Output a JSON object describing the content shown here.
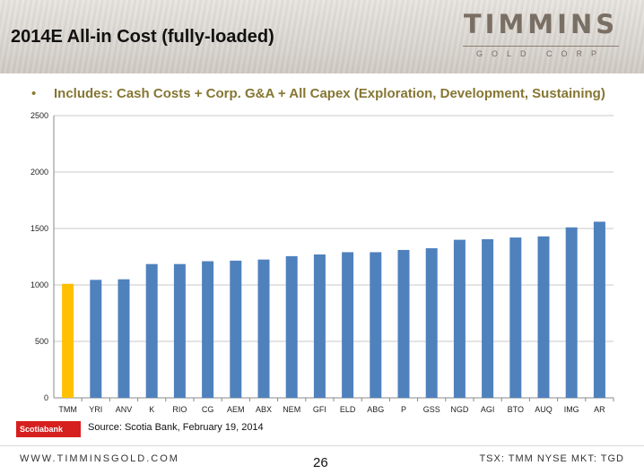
{
  "header": {
    "title": "2014E All-in Cost (fully-loaded)",
    "logo_main": "TIMMINS",
    "logo_sub": "GOLD CORP"
  },
  "bullet": {
    "dot": "•",
    "text": "Includes:  Cash Costs + Corp. G&A + All Capex (Exploration, Development, Sustaining)"
  },
  "chart_data": {
    "type": "bar",
    "categories": [
      "TMM",
      "YRI",
      "ANV",
      "K",
      "RIO",
      "CG",
      "AEM",
      "ABX",
      "NEM",
      "GFI",
      "ELD",
      "ABG",
      "P",
      "GSS",
      "NGD",
      "AGI",
      "BTO",
      "AUQ",
      "IMG",
      "AR"
    ],
    "values": [
      1010,
      1045,
      1050,
      1185,
      1185,
      1210,
      1215,
      1225,
      1255,
      1270,
      1290,
      1290,
      1310,
      1325,
      1400,
      1405,
      1420,
      1430,
      1510,
      1560
    ],
    "highlight_index": 0,
    "ylim": [
      0,
      2500
    ],
    "yticks": [
      0,
      500,
      1000,
      1500,
      2000,
      2500
    ],
    "grid": true,
    "title": "",
    "xlabel": "",
    "ylabel": "",
    "colors": {
      "bar": "#4f81bd",
      "highlight": "#ffc000",
      "grid": "#c8c8c8",
      "axis": "#888888"
    }
  },
  "source": {
    "badge": "Scotiabank",
    "text": "Source:  Scotia Bank, February 19, 2014"
  },
  "footer": {
    "url": "WWW.TIMMINSGOLD.COM",
    "page": "26",
    "tickers": "TSX: TMM   NYSE MKT: TGD"
  }
}
